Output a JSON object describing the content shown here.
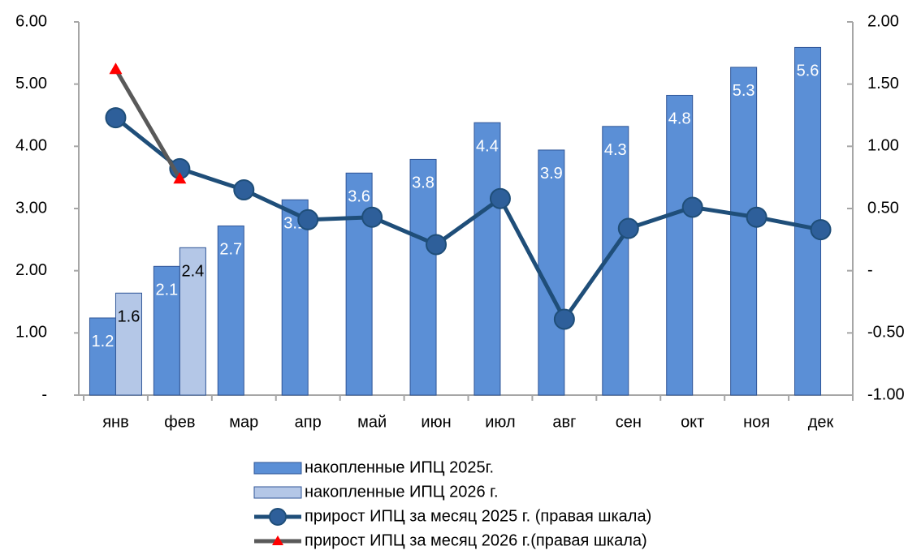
{
  "chart_data": {
    "type": "bar",
    "categories": [
      "янв",
      "фев",
      "мар",
      "апр",
      "май",
      "июн",
      "июл",
      "авг",
      "сен",
      "окт",
      "ноя",
      "дек"
    ],
    "series": [
      {
        "name": "накопленные ИПЦ 2025г.",
        "type": "bar",
        "color": "#5b8fd6",
        "edge": "#2f5597",
        "values": [
          1.24,
          2.07,
          2.72,
          3.14,
          3.57,
          3.79,
          4.38,
          3.94,
          4.32,
          4.82,
          5.27,
          5.59
        ],
        "value_labels": [
          "1.2",
          "2.1",
          "2.7",
          "3.1",
          "3.6",
          "3.8",
          "4.4",
          "3.9",
          "4.3",
          "4.8",
          "5.3",
          "5.6"
        ],
        "label_color": "#ffffff"
      },
      {
        "name": "накопленные ИПЦ 2026 г.",
        "type": "bar",
        "color": "#b4c7e7",
        "edge": "#2f5597",
        "values": [
          1.64,
          2.37,
          null,
          null,
          null,
          null,
          null,
          null,
          null,
          null,
          null,
          null
        ],
        "value_labels": [
          "1.6",
          "2.4",
          null,
          null,
          null,
          null,
          null,
          null,
          null,
          null,
          null,
          null
        ],
        "label_color": "#000000"
      },
      {
        "name": "прирост ИПЦ за месяц 2025 г. (правая шкала)",
        "type": "line",
        "axis": "y2",
        "color": "#1f4e79",
        "marker": "circle",
        "marker_color": "#2e5f9a",
        "values": [
          1.23,
          0.82,
          0.65,
          0.41,
          0.43,
          0.21,
          0.58,
          -0.39,
          0.34,
          0.51,
          0.43,
          0.33
        ]
      },
      {
        "name": "прирост ИПЦ за месяц 2026 г.(правая шкала)",
        "type": "line",
        "axis": "y2",
        "color": "#595959",
        "marker": "triangle",
        "marker_color": "#ff0000",
        "values": [
          1.62,
          0.74,
          null,
          null,
          null,
          null,
          null,
          null,
          null,
          null,
          null,
          null
        ]
      }
    ],
    "ylim": [
      0,
      6
    ],
    "yticks": [
      {
        "value": 0,
        "label": "-"
      },
      {
        "value": 1,
        "label": "1.00"
      },
      {
        "value": 2,
        "label": "2.00"
      },
      {
        "value": 3,
        "label": "3.00"
      },
      {
        "value": 4,
        "label": "4.00"
      },
      {
        "value": 5,
        "label": "5.00"
      },
      {
        "value": 6,
        "label": "6.00"
      }
    ],
    "y2lim": [
      -1,
      2
    ],
    "y2ticks": [
      {
        "value": -1,
        "label": "-1.00"
      },
      {
        "value": -0.5,
        "label": "-0.50"
      },
      {
        "value": 0,
        "label": "-"
      },
      {
        "value": 0.5,
        "label": "0.50"
      },
      {
        "value": 1,
        "label": "1.00"
      },
      {
        "value": 1.5,
        "label": "1.50"
      },
      {
        "value": 2,
        "label": "2.00"
      }
    ],
    "grid": false,
    "legend": "bottom"
  }
}
